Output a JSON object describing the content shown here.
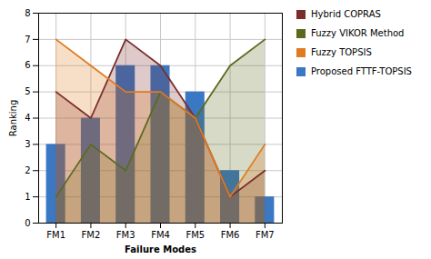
{
  "chart_data": {
    "type": "bar",
    "categories": [
      "FM1",
      "FM2",
      "FM3",
      "FM4",
      "FM5",
      "FM6",
      "FM7"
    ],
    "xlabel": "Failure Modes",
    "ylabel": "Ranking",
    "ylim": [
      0,
      8
    ],
    "yticks": [
      0,
      1,
      2,
      3,
      4,
      5,
      6,
      7,
      8
    ],
    "grid": true,
    "legend": "right",
    "series": [
      {
        "name": "Hybrid COPRAS",
        "type": "area",
        "color": "#7B2D2D",
        "values": [
          5,
          4,
          7,
          6,
          4,
          1,
          2
        ]
      },
      {
        "name": "Fuzzy VIKOR Method",
        "type": "area",
        "color": "#5A6B1E",
        "values": [
          1,
          3,
          2,
          5,
          4,
          6,
          7
        ]
      },
      {
        "name": "Fuzzy TOPSIS",
        "type": "area",
        "color": "#E07B20",
        "values": [
          7,
          6,
          5,
          5,
          4,
          1,
          3
        ]
      },
      {
        "name": "Proposed FTTF-TOPSIS",
        "type": "bar",
        "color": "#3B78C4",
        "values": [
          3,
          4,
          6,
          6,
          5,
          2,
          1
        ]
      }
    ]
  }
}
